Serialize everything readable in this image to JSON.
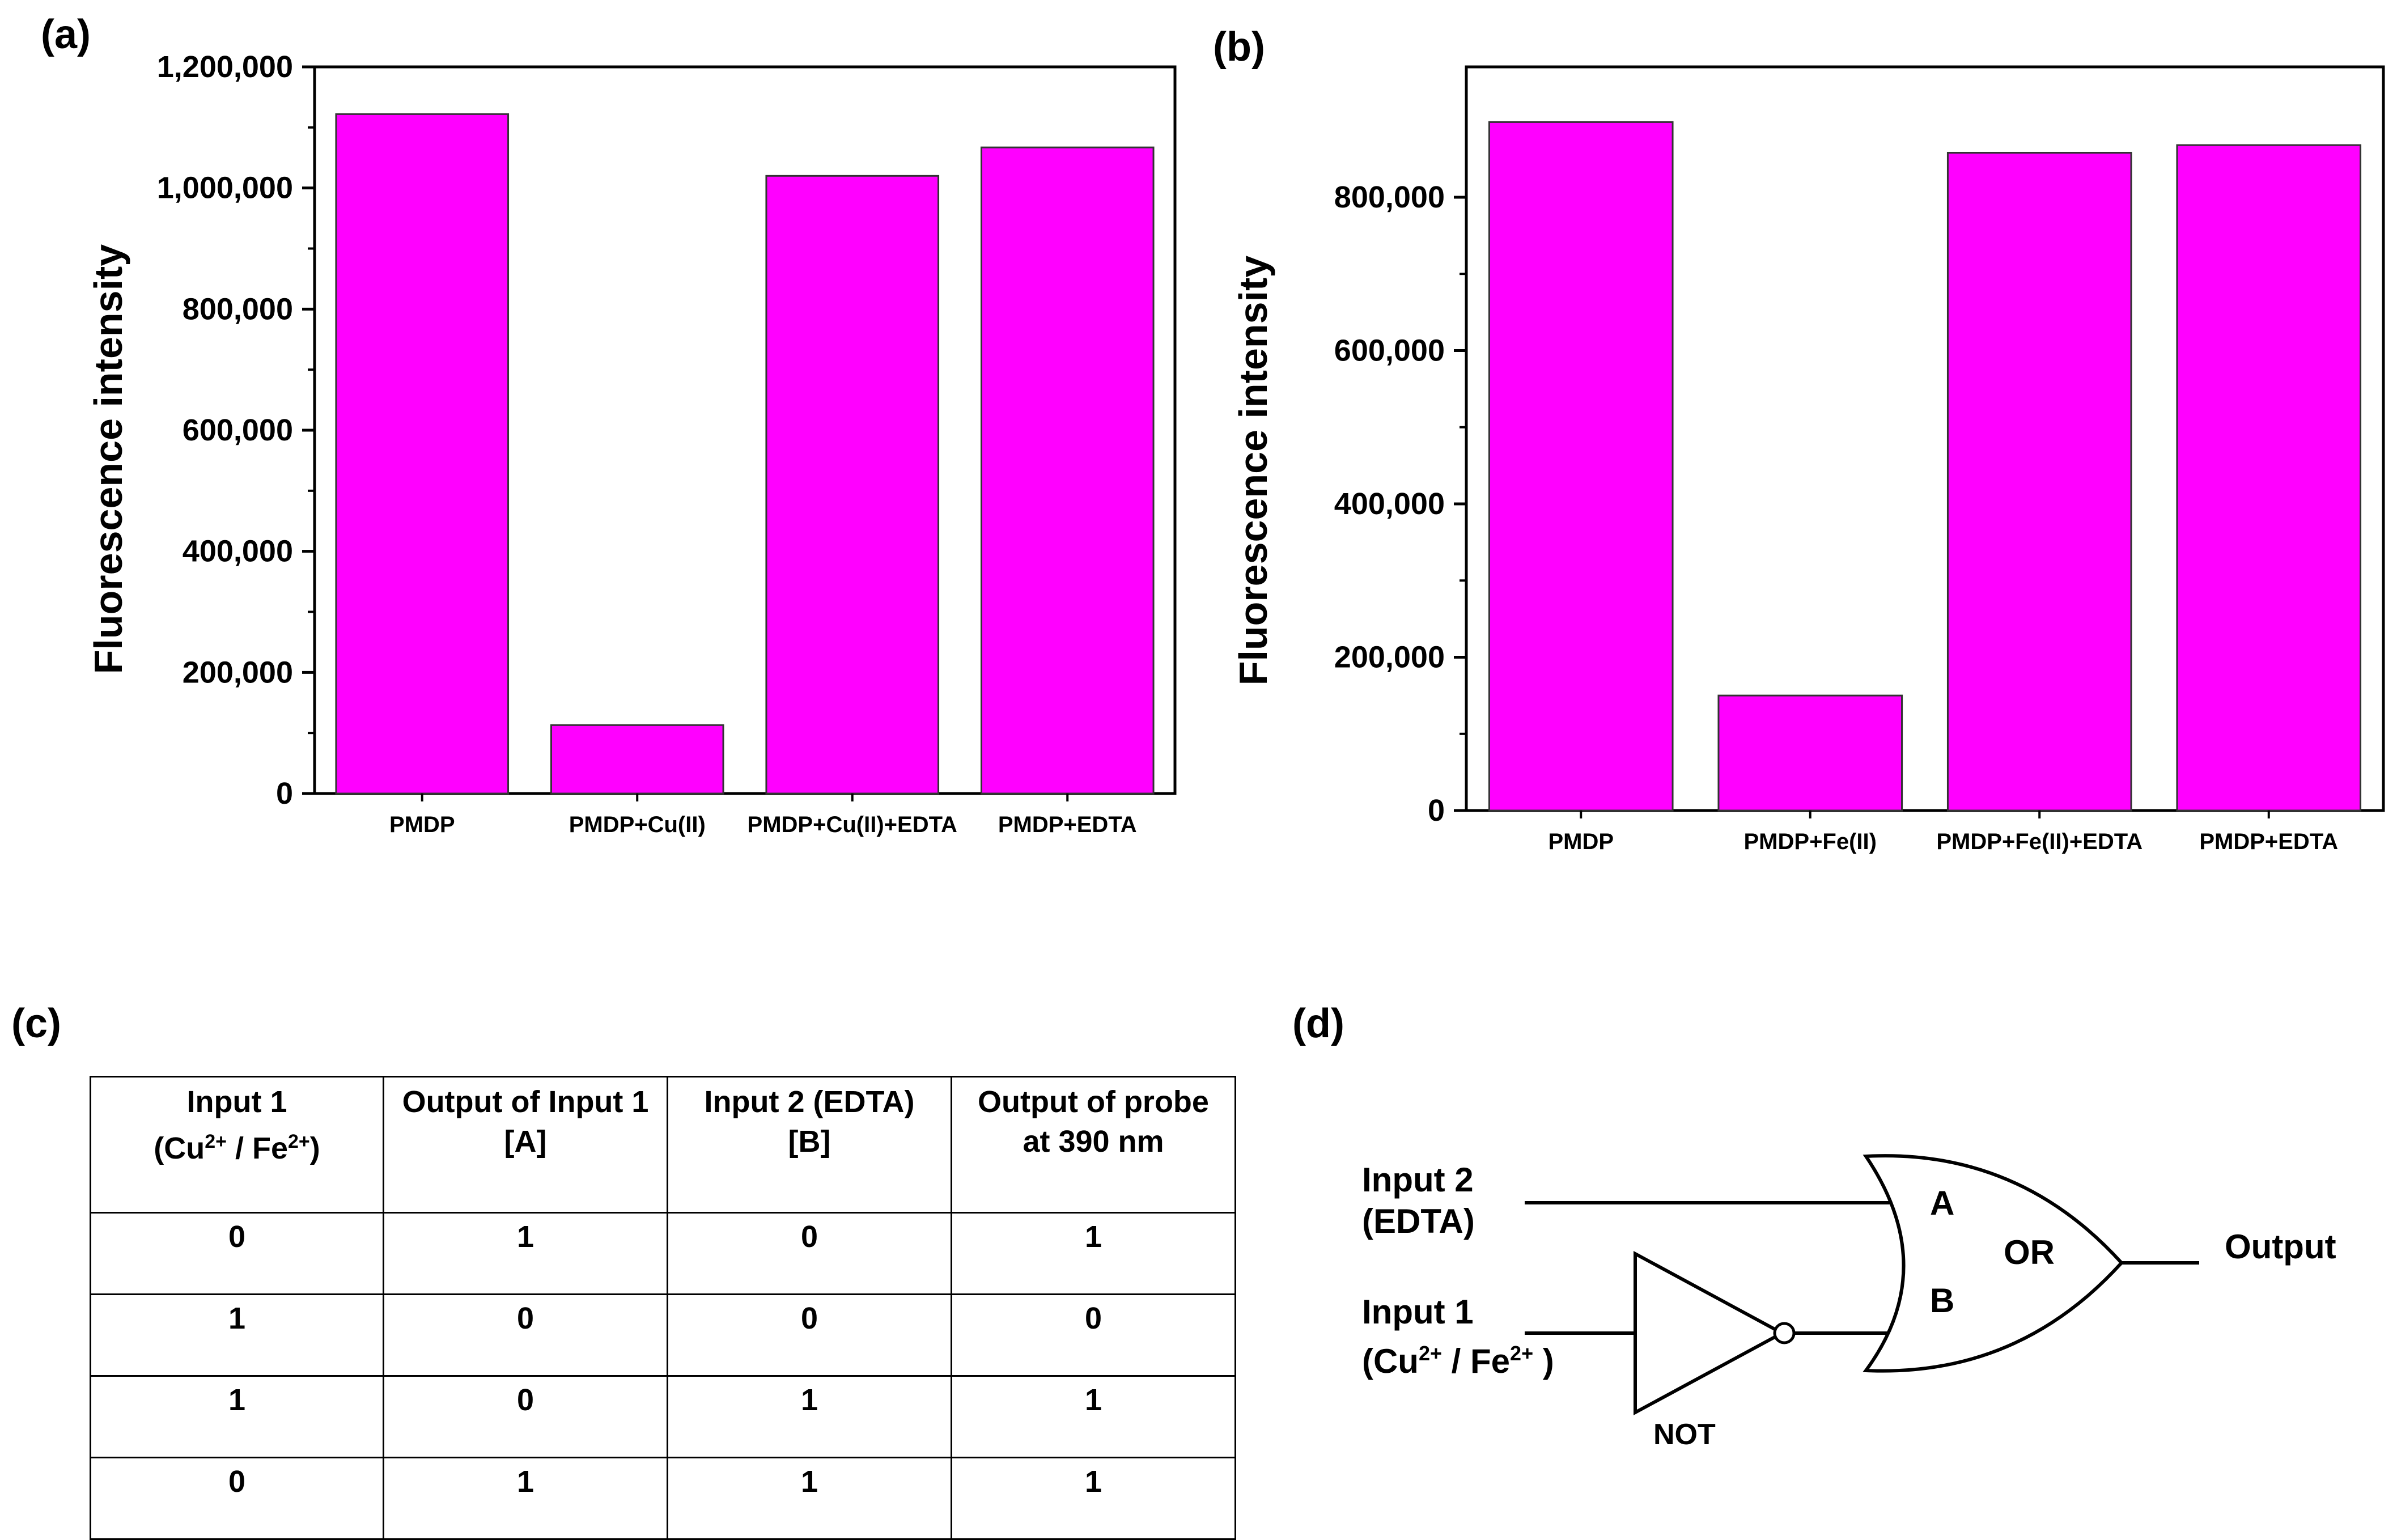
{
  "panels": {
    "a": "(a)",
    "b": "(b)",
    "c": "(c)",
    "d": "(d)"
  },
  "colors": {
    "bar": "#FF00FF",
    "axis": "#000000"
  },
  "chart_data": [
    {
      "type": "bar",
      "title": "",
      "xlabel": "",
      "ylabel": "Fluorescence intensity",
      "categories": [
        "PMDP",
        "PMDP+Cu(II)",
        "PMDP+Cu(II)+EDTA",
        "PMDP+EDTA"
      ],
      "values": [
        1122000,
        113000,
        1020000,
        1067000
      ],
      "ylim": [
        0,
        1200000
      ],
      "yticks": [
        0,
        200000,
        400000,
        600000,
        800000,
        1000000,
        1200000
      ],
      "ytick_labels": [
        "0",
        "200,000",
        "400,000",
        "600,000",
        "800,000",
        "1,000,000",
        "1,200,000"
      ]
    },
    {
      "type": "bar",
      "title": "",
      "xlabel": "",
      "ylabel": "Fluorescence intensity",
      "categories": [
        "PMDP",
        "PMDP+Fe(II)",
        "PMDP+Fe(II)+EDTA",
        "PMDP+EDTA"
      ],
      "values": [
        898000,
        150000,
        858000,
        868000
      ],
      "ylim": [
        0,
        970000
      ],
      "yticks": [
        0,
        200000,
        400000,
        600000,
        800000
      ],
      "ytick_labels": [
        "0",
        "200,000",
        "400,000",
        "600,000",
        "800,000"
      ]
    }
  ],
  "truth_table": {
    "headers": [
      {
        "line1": "Input 1",
        "line2_pre": "(Cu",
        "sup_a": "2+",
        "line2_mid": " / Fe",
        "sup_b": "2+",
        "line2_post": ")"
      },
      {
        "line1": "Output of Input 1",
        "line2": "[A]"
      },
      {
        "line1": "Input 2 (EDTA)",
        "line2": "[B]"
      },
      {
        "line1": "Output of probe",
        "line2": "at  390 nm"
      }
    ],
    "rows": [
      [
        "0",
        "1",
        "0",
        "1"
      ],
      [
        "1",
        "0",
        "0",
        "0"
      ],
      [
        "1",
        "0",
        "1",
        "1"
      ],
      [
        "0",
        "1",
        "1",
        "1"
      ]
    ]
  },
  "logic_diagram": {
    "input2_line1": "Input 2",
    "input2_line2": "(EDTA)",
    "input1_line1": "Input 1",
    "input1_line2_pre": "(Cu",
    "input1_sup_a": "2+",
    "input1_line2_mid": " / Fe",
    "input1_sup_b": "2+",
    "input1_line2_post": " )",
    "not_label": "NOT",
    "or_label": "OR",
    "pin_a": "A",
    "pin_b": "B",
    "output": "Output"
  }
}
